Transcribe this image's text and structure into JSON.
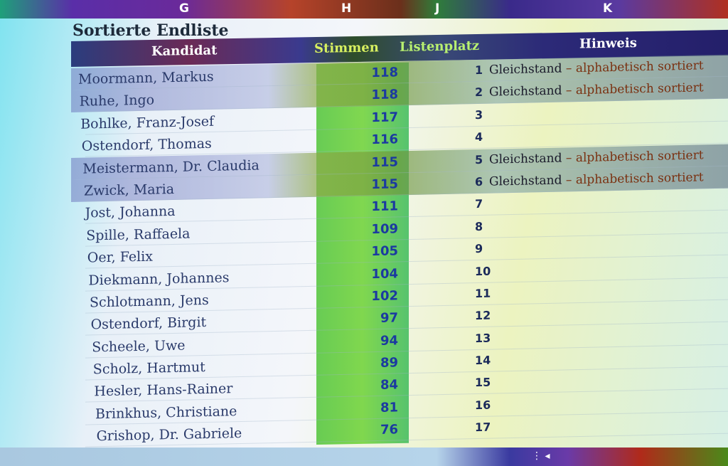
{
  "columns": [
    "G",
    "H",
    "J",
    "K"
  ],
  "title": "Sortierte Endliste",
  "headers": {
    "kandidat": "Kandidat",
    "stimmen": "Stimmen",
    "listenplatz": "Listenplatz",
    "hinweis": "Hinweis"
  },
  "tie_text": "Gleichstand",
  "tie_sorted_text": "– alphabetisch sortiert",
  "rows": [
    {
      "name": "Moormann, Markus",
      "votes": "118",
      "place": "1",
      "tie": true
    },
    {
      "name": "Ruhe, Ingo",
      "votes": "118",
      "place": "2",
      "tie": true
    },
    {
      "name": "Bohlke, Franz-Josef",
      "votes": "117",
      "place": "3",
      "tie": false
    },
    {
      "name": "Ostendorf, Thomas",
      "votes": "116",
      "place": "4",
      "tie": false
    },
    {
      "name": "Meistermann, Dr. Claudia",
      "votes": "115",
      "place": "5",
      "tie": true
    },
    {
      "name": "Zwick, Maria",
      "votes": "115",
      "place": "6",
      "tie": true
    },
    {
      "name": "Jost, Johanna",
      "votes": "111",
      "place": "7",
      "tie": false
    },
    {
      "name": "Spille, Raffaela",
      "votes": "109",
      "place": "8",
      "tie": false
    },
    {
      "name": "Oer, Felix",
      "votes": "105",
      "place": "9",
      "tie": false
    },
    {
      "name": "Diekmann, Johannes",
      "votes": "104",
      "place": "10",
      "tie": false
    },
    {
      "name": "Schlotmann, Jens",
      "votes": "102",
      "place": "11",
      "tie": false
    },
    {
      "name": "Ostendorf, Birgit",
      "votes": "97",
      "place": "12",
      "tie": false
    },
    {
      "name": "Scheele, Uwe",
      "votes": "94",
      "place": "13",
      "tie": false
    },
    {
      "name": "Scholz, Hartmut",
      "votes": "89",
      "place": "14",
      "tie": false
    },
    {
      "name": "Hesler, Hans-Rainer",
      "votes": "84",
      "place": "15",
      "tie": false
    },
    {
      "name": "Brinkhus, Christiane",
      "votes": "81",
      "place": "16",
      "tie": false
    },
    {
      "name": "Grishop, Dr. Gabriele",
      "votes": "76",
      "place": "17",
      "tie": false
    }
  ],
  "status_bar": {
    "nav_symbols": "⋮ ◂"
  },
  "colors": {
    "header_bg": "#2c2a78",
    "stimmen_band": "#4fc437",
    "votes_text": "#1b3aa0",
    "tie_row": "#8fa05a"
  }
}
